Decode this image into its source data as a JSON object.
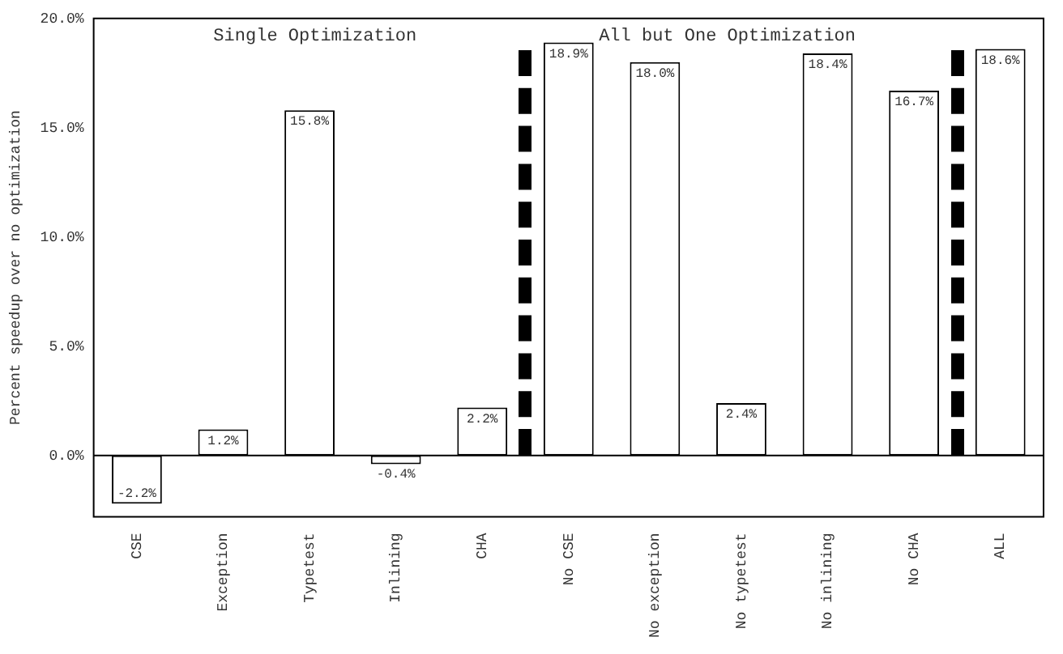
{
  "chart_data": {
    "type": "bar",
    "ylabel": "Percent speedup over no optimization",
    "categories": [
      "CSE",
      "Exception",
      "Typetest",
      "Inlining",
      "CHA",
      "No CSE",
      "No exception",
      "No typetest",
      "No inlining",
      "No CHA",
      "ALL"
    ],
    "values": [
      -2.2,
      1.2,
      15.8,
      -0.4,
      2.2,
      18.9,
      18.0,
      2.4,
      18.4,
      16.7,
      18.6
    ],
    "value_labels": [
      "-2.2%",
      "1.2%",
      "15.8%",
      "-0.4%",
      "2.2%",
      "18.9%",
      "18.0%",
      "2.4%",
      "18.4%",
      "16.7%",
      "18.6%"
    ],
    "color": "#ffffff",
    "ylim": [
      -2.8,
      20
    ],
    "yticks": [
      {
        "value": 0,
        "label": "0.0%"
      },
      {
        "value": 5,
        "label": "5.0%"
      },
      {
        "value": 10,
        "label": "10.0%"
      },
      {
        "value": 15,
        "label": "15.0%"
      },
      {
        "value": 20,
        "label": "20.0%"
      }
    ],
    "annotations": [
      "Single Optimization",
      "All but One Optimization"
    ],
    "grid": false,
    "legend": false
  }
}
